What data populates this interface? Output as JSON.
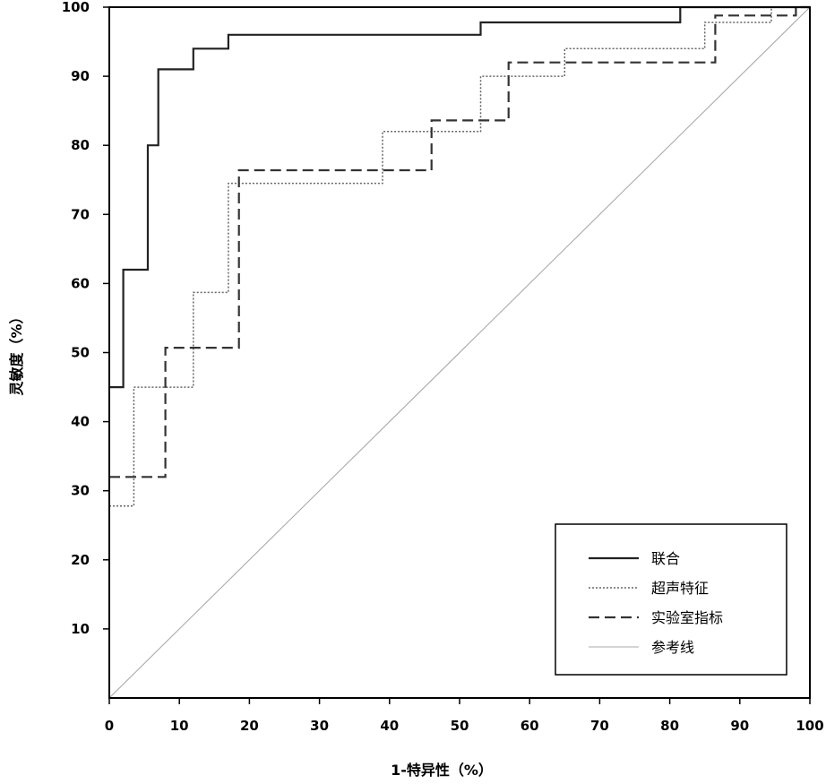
{
  "chart_data": {
    "type": "line",
    "xlabel": "1-特异性（%）",
    "ylabel": "灵敏度（%）",
    "xlim": [
      0,
      100
    ],
    "ylim": [
      0,
      100
    ],
    "x_ticks": [
      0,
      10,
      20,
      30,
      40,
      50,
      60,
      70,
      80,
      90,
      100
    ],
    "y_ticks": [
      10,
      20,
      30,
      40,
      50,
      60,
      70,
      80,
      90,
      100
    ],
    "grid": false,
    "legend_position": "bottom-right",
    "series": [
      {
        "name": "联合",
        "style": "solid",
        "color": "#222222",
        "points": [
          [
            0,
            45
          ],
          [
            2,
            45
          ],
          [
            2,
            62
          ],
          [
            5.5,
            62
          ],
          [
            5.5,
            80
          ],
          [
            7,
            80
          ],
          [
            7,
            91
          ],
          [
            12,
            91
          ],
          [
            12,
            94
          ],
          [
            17,
            94
          ],
          [
            17,
            96
          ],
          [
            53,
            96
          ],
          [
            53,
            97.8
          ],
          [
            81.5,
            97.8
          ],
          [
            81.5,
            100
          ],
          [
            100,
            100
          ]
        ]
      },
      {
        "name": "超声特征",
        "style": "dotted",
        "color": "#666666",
        "points": [
          [
            0,
            27.8
          ],
          [
            3.5,
            27.8
          ],
          [
            3.5,
            45
          ],
          [
            12,
            45
          ],
          [
            12,
            58.7
          ],
          [
            17,
            58.7
          ],
          [
            17,
            74.5
          ],
          [
            39,
            74.5
          ],
          [
            39,
            82
          ],
          [
            53,
            82
          ],
          [
            53,
            90
          ],
          [
            65,
            90
          ],
          [
            65,
            94
          ],
          [
            85,
            94
          ],
          [
            85,
            97.8
          ],
          [
            94.5,
            97.8
          ],
          [
            94.5,
            100
          ],
          [
            100,
            100
          ]
        ]
      },
      {
        "name": "实验室指标",
        "style": "dashed",
        "color": "#333333",
        "points": [
          [
            0,
            32
          ],
          [
            8,
            32
          ],
          [
            8,
            50.7
          ],
          [
            18.5,
            50.7
          ],
          [
            18.5,
            76.4
          ],
          [
            46,
            76.4
          ],
          [
            46,
            83.6
          ],
          [
            57,
            83.6
          ],
          [
            57,
            92
          ],
          [
            86.5,
            92
          ],
          [
            86.5,
            98.8
          ],
          [
            98,
            98.8
          ],
          [
            98,
            100
          ],
          [
            100,
            100
          ]
        ]
      },
      {
        "name": "参考线",
        "style": "solid-thin",
        "color": "#aaaaaa",
        "points": [
          [
            0,
            0
          ],
          [
            100,
            100
          ]
        ]
      }
    ]
  }
}
